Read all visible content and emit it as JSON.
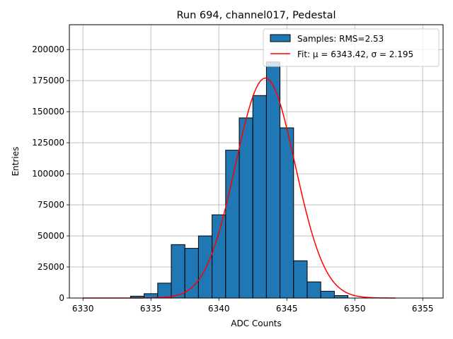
{
  "chart_data": {
    "type": "bar",
    "title": "Run 694, channel017, Pedestal",
    "xlabel": "ADC Counts",
    "ylabel": "Entries",
    "xlim": [
      6329,
      6356.5
    ],
    "ylim": [
      0,
      220000
    ],
    "xticks": [
      6330,
      6335,
      6340,
      6345,
      6350,
      6355
    ],
    "yticks": [
      0,
      25000,
      50000,
      75000,
      100000,
      125000,
      150000,
      175000,
      200000
    ],
    "grid": true,
    "legend_position": "top-right",
    "bin_width": 1,
    "bins": [
      {
        "x": 6334,
        "count": 1500
      },
      {
        "x": 6335,
        "count": 3500
      },
      {
        "x": 6336,
        "count": 12000
      },
      {
        "x": 6337,
        "count": 43000
      },
      {
        "x": 6338,
        "count": 40000
      },
      {
        "x": 6339,
        "count": 50000
      },
      {
        "x": 6340,
        "count": 67000
      },
      {
        "x": 6341,
        "count": 119000
      },
      {
        "x": 6342,
        "count": 145000
      },
      {
        "x": 6343,
        "count": 163000
      },
      {
        "x": 6344,
        "count": 190000
      },
      {
        "x": 6345,
        "count": 137000
      },
      {
        "x": 6346,
        "count": 30000
      },
      {
        "x": 6347,
        "count": 13000
      },
      {
        "x": 6348,
        "count": 5500
      },
      {
        "x": 6349,
        "count": 2000
      }
    ],
    "fit": {
      "type": "gaussian",
      "mu": 6343.42,
      "sigma": 2.195,
      "peak": 177000,
      "x_range": [
        6330,
        6353
      ]
    },
    "legend": [
      {
        "label": "Samples: RMS=2.53",
        "kind": "patch",
        "color": "#1f77b4"
      },
      {
        "label": "Fit: μ = 6343.42, σ = 2.195",
        "kind": "line",
        "color": "#ff0000"
      }
    ],
    "colors": {
      "bar": "#1f77b4",
      "bar_edge": "#000000",
      "fit": "#ff0000",
      "grid": "#b0b0b0"
    }
  }
}
